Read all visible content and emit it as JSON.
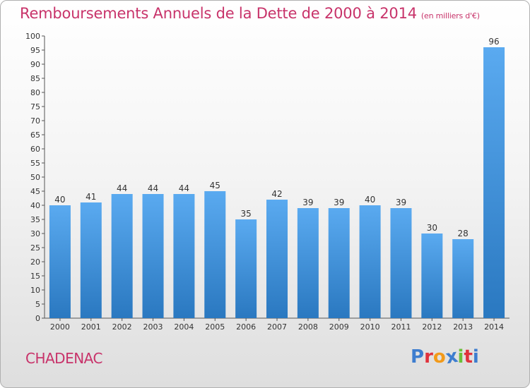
{
  "title": "Remboursements Annuels de la Dette de 2000 à 2014",
  "subtitle": "(en milliers d'€)",
  "municipality": "CHADENAC",
  "logo": {
    "letters": [
      "P",
      "r",
      "o",
      "x",
      "i",
      "t",
      "i"
    ],
    "colors": [
      "#3d7dcf",
      "#e0323c",
      "#f29a1a",
      "#3d7dcf",
      "#6bbf3a",
      "#e0323c",
      "#3d7dcf"
    ]
  },
  "colors": {
    "title": "#c8336a",
    "bar_light": "#5aaaf0",
    "bar_dark": "#2a78c0"
  },
  "chart_data": {
    "type": "bar",
    "categories": [
      "2000",
      "2001",
      "2002",
      "2003",
      "2004",
      "2005",
      "2006",
      "2007",
      "2008",
      "2009",
      "2010",
      "2011",
      "2012",
      "2013",
      "2014"
    ],
    "values": [
      40,
      41,
      44,
      44,
      44,
      45,
      35,
      42,
      39,
      39,
      40,
      39,
      30,
      28,
      96
    ],
    "ylim": [
      0,
      100
    ],
    "ytick_step": 5,
    "grid": false,
    "data_labels": true
  }
}
